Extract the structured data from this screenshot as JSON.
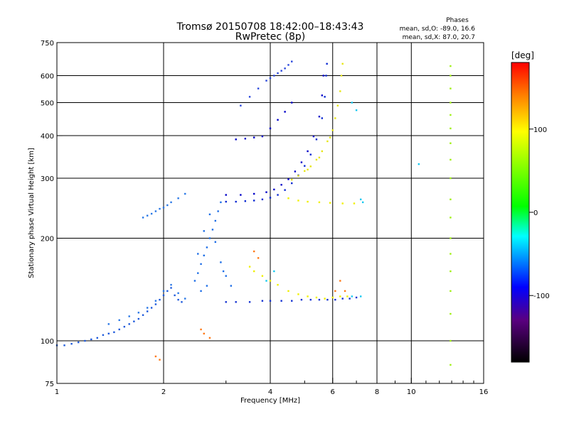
{
  "header": {
    "title_line1": "Tromsø 20150708 18:42:00–18:43:43",
    "title_line2": "RwPretec (8p)"
  },
  "stats": {
    "heading": "Phases",
    "line_o": "mean, sd,O: -89.0, 16.6",
    "line_x": "mean, sd,X: 87.0, 20.7"
  },
  "chart_data": {
    "type": "scatter",
    "xlabel": "Frequency [MHz]",
    "ylabel": "Stationary phase Virtual Height [km]",
    "x_scale": "log",
    "y_scale": "log",
    "xlim": [
      1,
      16
    ],
    "ylim": [
      75,
      750
    ],
    "x_ticks": [
      1,
      2,
      4,
      6,
      8,
      10,
      16
    ],
    "x_minor_ticks": [
      3,
      5,
      7,
      9,
      11,
      12,
      13,
      14,
      15
    ],
    "y_ticks": [
      75,
      100,
      200,
      300,
      400,
      500,
      600,
      750
    ],
    "grid": true,
    "grid_x": [
      2,
      4,
      6,
      8,
      10
    ],
    "grid_y": [
      100,
      200,
      300,
      400,
      500,
      600
    ],
    "color_scale": {
      "label": "[deg]",
      "range": [
        -180,
        180
      ],
      "ticks": [
        100,
        0,
        -100
      ],
      "colors": [
        "#000000",
        "#5a0080",
        "#0000ff",
        "#00ffff",
        "#00ff00",
        "#ffff00",
        "#ff8000",
        "#ff0000"
      ]
    },
    "series": [
      {
        "color": "#1e5adc",
        "points": [
          [
            1.0,
            97
          ],
          [
            1.05,
            97
          ],
          [
            1.1,
            98
          ],
          [
            1.15,
            99
          ],
          [
            1.2,
            100
          ],
          [
            1.25,
            101
          ],
          [
            1.3,
            102
          ],
          [
            1.35,
            104
          ],
          [
            1.4,
            105
          ],
          [
            1.45,
            106
          ],
          [
            1.5,
            108
          ],
          [
            1.55,
            110
          ],
          [
            1.6,
            112
          ],
          [
            1.65,
            114
          ],
          [
            1.7,
            116
          ],
          [
            1.75,
            119
          ],
          [
            1.8,
            122
          ],
          [
            1.85,
            125
          ],
          [
            1.9,
            128
          ],
          [
            1.95,
            132
          ],
          [
            2.0,
            136
          ],
          [
            2.05,
            140
          ],
          [
            2.1,
            143
          ],
          [
            2.15,
            136
          ],
          [
            2.2,
            132
          ],
          [
            2.25,
            130
          ]
        ]
      },
      {
        "color": "#2a78e6",
        "points": [
          [
            1.4,
            112
          ],
          [
            1.5,
            115
          ],
          [
            1.6,
            118
          ],
          [
            1.7,
            121
          ],
          [
            1.8,
            125
          ],
          [
            1.9,
            131
          ],
          [
            2.0,
            140
          ],
          [
            2.1,
            146
          ],
          [
            2.2,
            138
          ],
          [
            2.3,
            133
          ],
          [
            1.75,
            230
          ],
          [
            1.8,
            233
          ],
          [
            1.85,
            236
          ],
          [
            1.9,
            240
          ],
          [
            1.95,
            244
          ],
          [
            2.0,
            246
          ],
          [
            2.05,
            250
          ],
          [
            2.1,
            255
          ],
          [
            2.2,
            262
          ],
          [
            2.3,
            270
          ]
        ]
      },
      {
        "color": "#1e6ee6",
        "points": [
          [
            2.45,
            150
          ],
          [
            2.5,
            158
          ],
          [
            2.55,
            168
          ],
          [
            2.6,
            178
          ],
          [
            2.65,
            188
          ],
          [
            2.7,
            200
          ],
          [
            2.75,
            212
          ],
          [
            2.8,
            225
          ],
          [
            2.85,
            240
          ],
          [
            2.9,
            255
          ],
          [
            2.5,
            180
          ],
          [
            2.6,
            210
          ],
          [
            2.7,
            235
          ],
          [
            2.8,
            195
          ],
          [
            2.9,
            170
          ],
          [
            3.0,
            155
          ],
          [
            3.1,
            145
          ],
          [
            2.95,
            160
          ],
          [
            2.55,
            140
          ],
          [
            2.65,
            145
          ]
        ]
      },
      {
        "color": "#0a28d2",
        "points": [
          [
            3.0,
            256
          ],
          [
            3.2,
            256
          ],
          [
            3.4,
            257
          ],
          [
            3.6,
            258
          ],
          [
            3.8,
            260
          ],
          [
            4.0,
            263
          ],
          [
            4.2,
            268
          ],
          [
            4.4,
            277
          ],
          [
            4.6,
            290
          ],
          [
            4.8,
            306
          ],
          [
            5.0,
            326
          ],
          [
            5.2,
            352
          ],
          [
            5.4,
            390
          ],
          [
            5.6,
            450
          ],
          [
            5.7,
            520
          ],
          [
            5.75,
            600
          ],
          [
            5.78,
            650
          ]
        ]
      },
      {
        "color": "#0000c8",
        "points": [
          [
            3.0,
            268
          ],
          [
            3.3,
            268
          ],
          [
            3.6,
            270
          ],
          [
            3.9,
            273
          ],
          [
            4.1,
            278
          ],
          [
            4.3,
            287
          ],
          [
            4.5,
            298
          ],
          [
            4.7,
            314
          ],
          [
            4.9,
            334
          ],
          [
            5.1,
            360
          ],
          [
            5.3,
            398
          ],
          [
            5.5,
            455
          ],
          [
            5.6,
            525
          ],
          [
            5.65,
            600
          ],
          [
            3.2,
            390
          ],
          [
            3.4,
            392
          ],
          [
            3.6,
            395
          ],
          [
            3.8,
            398
          ],
          [
            4.0,
            420
          ],
          [
            4.2,
            445
          ],
          [
            4.4,
            470
          ],
          [
            4.6,
            500
          ]
        ]
      },
      {
        "color": "#1432d2",
        "points": [
          [
            3.0,
            130
          ],
          [
            3.2,
            130
          ],
          [
            3.5,
            130
          ],
          [
            3.8,
            131
          ],
          [
            4.0,
            131
          ],
          [
            4.3,
            131
          ],
          [
            4.6,
            131
          ],
          [
            4.9,
            132
          ],
          [
            5.2,
            132
          ],
          [
            5.5,
            132
          ],
          [
            5.8,
            132
          ],
          [
            6.1,
            132
          ],
          [
            6.4,
            133
          ],
          [
            6.7,
            133
          ],
          [
            7.0,
            134
          ]
        ]
      },
      {
        "color": "#2846dc",
        "points": [
          [
            3.3,
            490
          ],
          [
            3.5,
            520
          ],
          [
            3.7,
            550
          ],
          [
            3.9,
            580
          ],
          [
            4.0,
            590
          ],
          [
            4.1,
            600
          ],
          [
            4.2,
            610
          ],
          [
            4.3,
            620
          ],
          [
            4.4,
            630
          ],
          [
            4.5,
            645
          ],
          [
            4.6,
            660
          ]
        ]
      },
      {
        "color": "#e6e614",
        "points": [
          [
            4.6,
            297
          ],
          [
            4.8,
            305
          ],
          [
            5.0,
            315
          ],
          [
            5.2,
            325
          ],
          [
            5.4,
            340
          ],
          [
            5.6,
            360
          ],
          [
            5.8,
            385
          ],
          [
            6.0,
            415
          ],
          [
            6.1,
            450
          ],
          [
            6.2,
            490
          ],
          [
            6.3,
            540
          ],
          [
            6.35,
            600
          ],
          [
            6.4,
            650
          ],
          [
            5.1,
            318
          ],
          [
            5.5,
            345
          ],
          [
            5.9,
            395
          ]
        ]
      },
      {
        "color": "#f0f000",
        "points": [
          [
            3.5,
            165
          ],
          [
            3.6,
            160
          ],
          [
            3.8,
            155
          ],
          [
            4.0,
            150
          ],
          [
            4.2,
            146
          ],
          [
            4.5,
            140
          ],
          [
            4.8,
            137
          ],
          [
            5.1,
            135
          ],
          [
            5.4,
            134
          ],
          [
            5.7,
            133
          ],
          [
            6.0,
            134
          ],
          [
            6.3,
            135
          ],
          [
            6.6,
            135
          ],
          [
            4.5,
            262
          ],
          [
            4.8,
            258
          ],
          [
            5.1,
            256
          ],
          [
            5.5,
            255
          ],
          [
            5.9,
            254
          ],
          [
            6.4,
            253
          ],
          [
            6.9,
            253
          ]
        ]
      },
      {
        "color": "#a0f014",
        "points": [
          [
            12.9,
            100
          ],
          [
            12.9,
            120
          ],
          [
            12.9,
            140
          ],
          [
            12.9,
            160
          ],
          [
            12.9,
            180
          ],
          [
            12.9,
            200
          ],
          [
            12.9,
            230
          ],
          [
            12.9,
            260
          ],
          [
            12.9,
            300
          ],
          [
            12.9,
            340
          ],
          [
            12.9,
            380
          ],
          [
            12.9,
            420
          ],
          [
            12.9,
            460
          ],
          [
            12.9,
            500
          ],
          [
            12.9,
            550
          ],
          [
            12.9,
            600
          ],
          [
            12.9,
            640
          ],
          [
            12.9,
            85
          ]
        ]
      },
      {
        "color": "#ff7814",
        "points": [
          [
            2.6,
            105
          ],
          [
            2.55,
            108
          ],
          [
            2.7,
            102
          ],
          [
            6.1,
            140
          ],
          [
            6.3,
            150
          ],
          [
            6.5,
            140
          ],
          [
            3.6,
            183
          ],
          [
            3.7,
            175
          ],
          [
            1.9,
            90
          ],
          [
            1.95,
            88
          ]
        ]
      },
      {
        "color": "#14c8f0",
        "points": [
          [
            6.8,
            500
          ],
          [
            7.0,
            475
          ],
          [
            7.2,
            260
          ],
          [
            7.3,
            255
          ],
          [
            10.5,
            330
          ],
          [
            6.8,
            135
          ],
          [
            7.2,
            135
          ],
          [
            4.1,
            160
          ],
          [
            3.9,
            150
          ]
        ]
      }
    ]
  }
}
